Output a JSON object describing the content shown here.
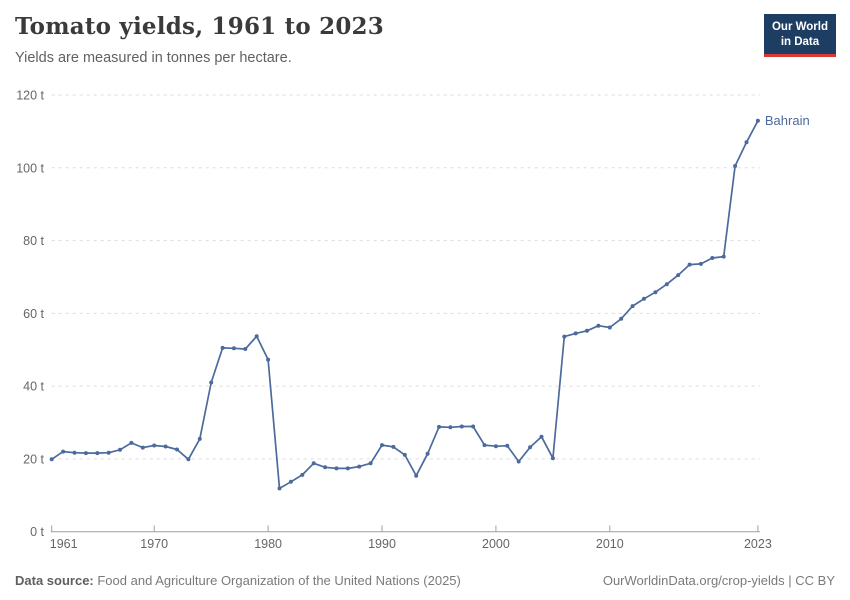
{
  "header": {
    "title": "Tomato yields, 1961 to 2023",
    "subtitle": "Yields are measured in tonnes per hectare.",
    "logo": {
      "line1": "Our World",
      "line2": "in Data"
    }
  },
  "footer": {
    "source_label": "Data source:",
    "source_text": " Food and Agriculture Organization of the United Nations (2025)",
    "link_text": "OurWorldinData.org/crop-yields | CC BY"
  },
  "colors": {
    "line": "#4c6a9c",
    "entity_label": "#4c6a9c",
    "grid": "#dddddd",
    "axis_line": "#a0a0a0",
    "tick_text": "#666666",
    "logo_navy": "#1d3d63",
    "logo_red": "#d73a34"
  },
  "chart_data": {
    "type": "line",
    "title": "Tomato yields, 1961 to 2023",
    "subtitle": "Yields are measured in tonnes per hectare.",
    "xlabel": "",
    "ylabel": "tonnes per hectare",
    "xlim": [
      1961,
      2023
    ],
    "ylim": [
      0,
      120
    ],
    "grid": "dashed-horizontal",
    "legend_position": "end-of-line-label",
    "x_ticks": [
      1961,
      1970,
      1980,
      1990,
      2000,
      2010,
      2023
    ],
    "x_tick_labels": [
      "1961",
      "1970",
      "1980",
      "1990",
      "2000",
      "2010",
      "2023"
    ],
    "y_ticks": [
      0,
      20,
      40,
      60,
      80,
      100,
      120
    ],
    "y_tick_labels": [
      "0 t",
      "20 t",
      "40 t",
      "60 t",
      "80 t",
      "100 t",
      "120 t"
    ],
    "series": [
      {
        "name": "Bahrain",
        "color": "#4c6a9c",
        "x": [
          1961,
          1962,
          1963,
          1964,
          1965,
          1966,
          1967,
          1968,
          1969,
          1970,
          1971,
          1972,
          1973,
          1974,
          1975,
          1976,
          1977,
          1978,
          1979,
          1980,
          1981,
          1982,
          1983,
          1984,
          1985,
          1986,
          1987,
          1988,
          1989,
          1990,
          1991,
          1992,
          1993,
          1994,
          1995,
          1996,
          1997,
          1998,
          1999,
          2000,
          2001,
          2002,
          2003,
          2004,
          2005,
          2006,
          2007,
          2008,
          2009,
          2010,
          2011,
          2012,
          2013,
          2014,
          2015,
          2016,
          2017,
          2018,
          2019,
          2020,
          2021,
          2022,
          2023
        ],
        "values": [
          19.9,
          22.0,
          21.7,
          21.6,
          21.6,
          21.7,
          22.5,
          24.4,
          23.1,
          23.7,
          23.4,
          22.6,
          19.9,
          25.5,
          41.0,
          50.5,
          50.4,
          50.2,
          53.7,
          47.3,
          11.9,
          13.7,
          15.6,
          18.8,
          17.7,
          17.4,
          17.4,
          17.9,
          18.8,
          23.8,
          23.3,
          21.1,
          15.4,
          21.4,
          28.8,
          28.7,
          28.9,
          28.9,
          23.8,
          23.5,
          23.6,
          19.3,
          23.2,
          26.1,
          20.2,
          53.6,
          54.5,
          55.2,
          56.6,
          56.1,
          58.5,
          62.0,
          64.0,
          65.8,
          68.0,
          70.5,
          73.4,
          73.6,
          75.2,
          75.6,
          100.5,
          107.0,
          112.9
        ]
      }
    ]
  }
}
